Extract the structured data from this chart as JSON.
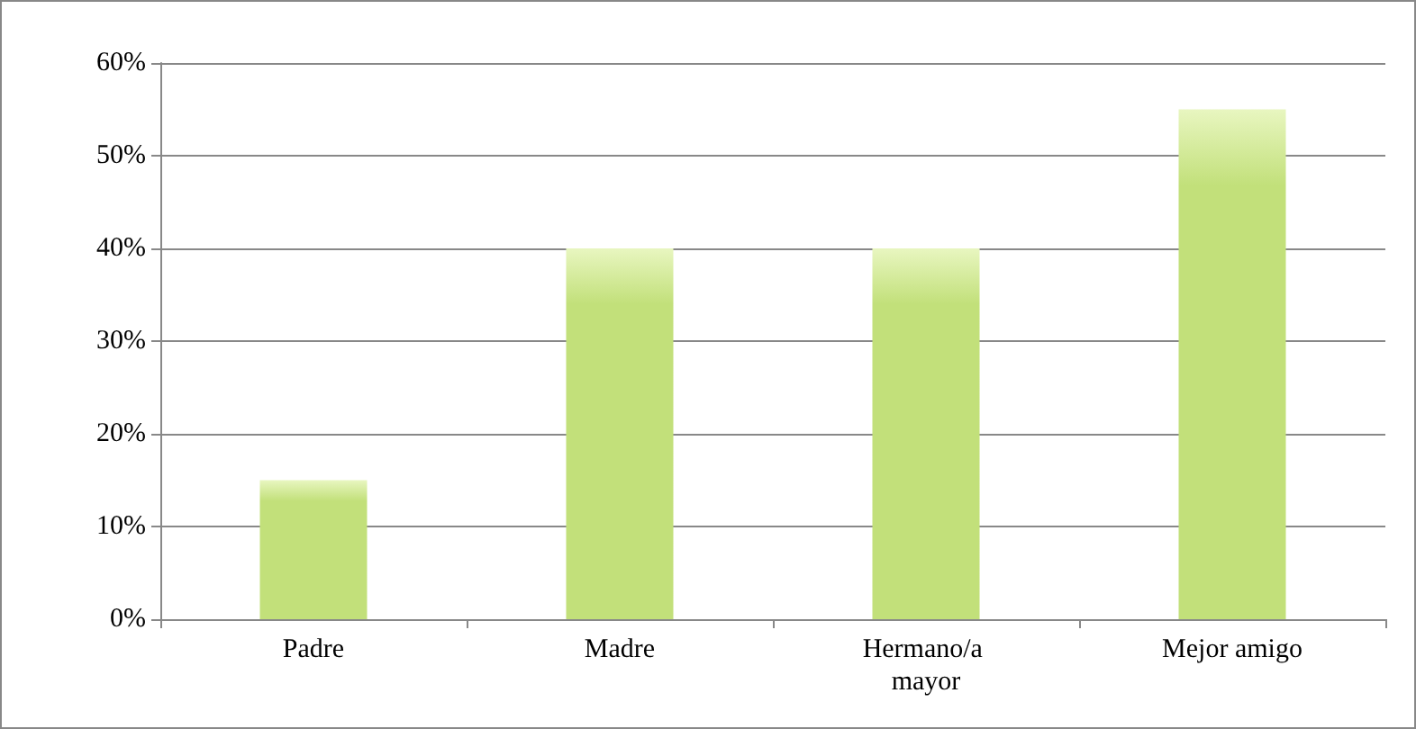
{
  "chart_data": {
    "type": "bar",
    "categories": [
      "Padre",
      "Madre",
      "Hermano/a mayor",
      "Mejor amigo"
    ],
    "values": [
      15,
      40,
      40,
      55
    ],
    "color": "#c2e07a",
    "ylim": [
      0,
      60
    ],
    "yticks": [
      {
        "value": 0,
        "label": "0%"
      },
      {
        "value": 10,
        "label": "10%"
      },
      {
        "value": 20,
        "label": "20%"
      },
      {
        "value": 30,
        "label": "30%"
      },
      {
        "value": 40,
        "label": "40%"
      },
      {
        "value": 50,
        "label": "50%"
      },
      {
        "value": 60,
        "label": "60%"
      }
    ],
    "grid": true
  }
}
